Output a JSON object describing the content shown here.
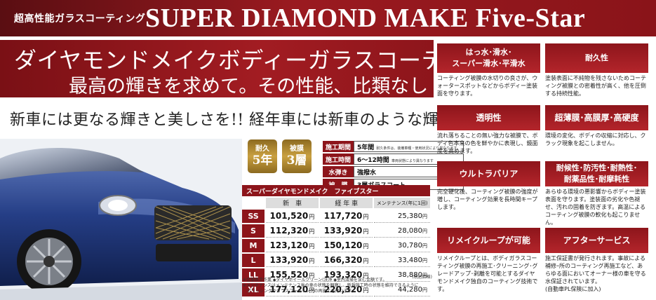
{
  "header": {
    "small_title": "超高性能ガラスコーティング",
    "title": "SUPER DIAMOND MAKE Five-Star"
  },
  "banner": {
    "line1": "ダイヤモンドメイクボディーガラスコーティング",
    "line2": "最高の輝きを求めて。その性能、比類なし"
  },
  "slogan": "新車には更なる輝きと美しさを!! 経年車には新車のような輝きを!!",
  "badges": [
    {
      "top": "耐久",
      "value": "5年"
    },
    {
      "top": "被膜",
      "value": "3層"
    }
  ],
  "spec": [
    {
      "label": "施工期間",
      "value": "5年間",
      "note": "耐久条件は、装備車種・使用状況により異なります。"
    },
    {
      "label": "施工時間",
      "value": "6〜12時間",
      "note": "車両状態により異なります"
    },
    {
      "label": "水弾き",
      "value": "強撥水",
      "note": ""
    },
    {
      "label": "被　膜",
      "value": "3層ガラスコート",
      "note": ""
    }
  ],
  "price_table": {
    "caption": "スーパーダイヤモンドメイク　ファイブスター",
    "col_new": "新　車",
    "col_used": "経 年 車",
    "col_maint": "メンテナンス(年に1回)",
    "unit": "円",
    "rows": [
      {
        "size": "SS",
        "new": "101,520",
        "used": "117,720",
        "maint": "25,380"
      },
      {
        "size": "S",
        "new": "112,320",
        "used": "133,920",
        "maint": "28,080"
      },
      {
        "size": "M",
        "new": "123,120",
        "used": "150,120",
        "maint": "30,780"
      },
      {
        "size": "L",
        "new": "133,920",
        "used": "166,320",
        "maint": "33,480"
      },
      {
        "size": "LL",
        "new": "155,520",
        "used": "193,320",
        "maint": "38,880"
      },
      {
        "size": "XL",
        "new": "177,120",
        "used": "220,320",
        "maint": "44,280"
      }
    ],
    "tax_note": "(税込価格)",
    "footnote1": "※金額表示作業 ◆ダイヤホイールクリーン(洗浄 ◆室内清掃を含む金額です。",
    "footnote2": "※メンテナンスはメンテナンス後の車の状態を観察し、新規施工時の状態を維持できるように",
    "footnote3": "　ポリッシングやガラスコーティングの再施工を行います。"
  },
  "features": [
    {
      "title": "はっ水･滑水･\nスーパー滑水･平滑水",
      "text": "コーティング被膜の水切りの良さが、ウォータースポットなどからボディー塗装面を守ります。"
    },
    {
      "title": "耐久性",
      "text": "塗装表面に不純物を残さないためコーティング被膜との密着性が高く、他を圧倒する持続性能。"
    },
    {
      "title": "透明性",
      "text": "流れ落ちることの無い強力な被膜で、ボディ色本来の色を鮮やかに表現し、鏡面度を高めます。"
    },
    {
      "title": "超薄膜･高膜厚･高硬度",
      "text": "環境の変化、ボディの収縮に対応し、クラック現象を起こしません。"
    },
    {
      "title": "ウルトラバリア",
      "text": "完全硬化後、コーティング被膜の強度が増し、コーティング効果を長時間キープします。"
    },
    {
      "title": "耐候性･防汚性･耐熱性･\n耐薬品性･耐摩耗性",
      "text": "あらゆる環境の悪影響からボディー塗装表面を守ります。塗装面の劣化や色褪せ、汚れの固着を防ぎます。高温によるコーティング被膜の軟化も起こりません。"
    },
    {
      "title": "リメイクループが可能",
      "text": "リメイクループとは、ボディガラスコーティング被膜の再施工･クリーニング･グレードアップ･剥離を可能とするダイヤモンドメイク独自のコーティング技術です。"
    },
    {
      "title": "アフターサービス",
      "text": "施工保証書が発行されます。事故による補修ｰ所のコーティング再施工など、あらゆる面においてオーナー様の車を守る水保証されています。\n(自動車PL保険に加入)"
    }
  ],
  "colors": {
    "brand_red": "#8d151b",
    "gold": "#c9a040",
    "car_blue": "#1f3579"
  }
}
